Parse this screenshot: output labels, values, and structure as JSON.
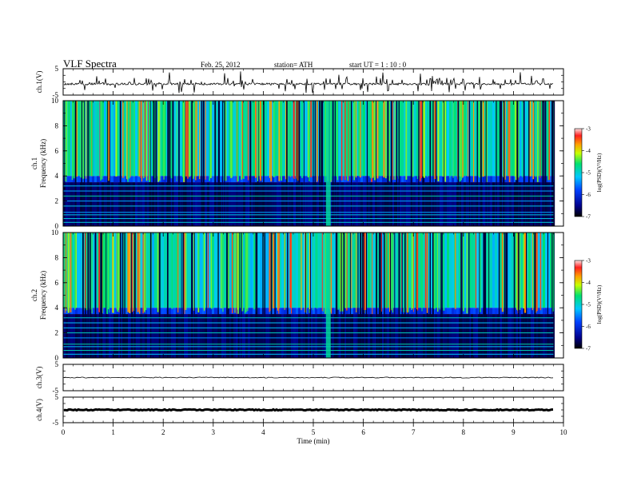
{
  "header": {
    "title": "VLF  Spectra",
    "date": "Feb. 25, 2012",
    "station": "station= ATH",
    "start": "start  UT  =   1  : 10 : 0"
  },
  "chart_data": [
    {
      "type": "line",
      "panel": "ch.1",
      "ylabel": "ch.1(V)",
      "ylim": [
        -5,
        5
      ],
      "yticks": [
        -5,
        5
      ],
      "baseline": -0.8,
      "noise": "impulsive spikes (sferics)"
    },
    {
      "type": "heatmap",
      "panel": "ch.1 spectrogram",
      "ylabel": [
        "ch.1",
        "Frequency  (kHz)"
      ],
      "ylim": [
        0,
        10
      ],
      "yticks": [
        0,
        2,
        4,
        6,
        8,
        10
      ],
      "colorbar": {
        "label": "log(PSD)(V²/Hz)",
        "range": [
          -7,
          -3
        ],
        "ticks": [
          -7,
          -6,
          -5,
          -4,
          -3
        ]
      },
      "broadband_band_khz": [
        4,
        10
      ],
      "quiet_band_khz": [
        0,
        3.5
      ],
      "interference_time_min": 5.3
    },
    {
      "type": "heatmap",
      "panel": "ch.2 spectrogram",
      "ylabel": [
        "ch.2",
        "Frequency  (kHz)"
      ],
      "ylim": [
        0,
        10
      ],
      "yticks": [
        0,
        2,
        4,
        6,
        8,
        10
      ],
      "colorbar": {
        "label": "log(PSD)(V²/Hz)",
        "range": [
          -7,
          -3
        ],
        "ticks": [
          -7,
          -6,
          -5,
          -4,
          -3
        ]
      },
      "broadband_band_khz": [
        4,
        10
      ],
      "quiet_band_khz": [
        0,
        3.5
      ],
      "interference_time_min": 5.3
    },
    {
      "type": "line",
      "panel": "ch.3",
      "ylabel": "ch.3(V)",
      "ylim": [
        -5,
        5
      ],
      "yticks": [
        -5,
        5
      ],
      "baseline": 0
    },
    {
      "type": "line",
      "panel": "ch.4",
      "ylabel": "ch.4(V)",
      "ylim": [
        -5,
        5
      ],
      "yticks": [
        -5,
        5
      ],
      "baseline": 0
    }
  ],
  "xaxis": {
    "label": "Time  (min)",
    "range": [
      0,
      10
    ],
    "data_end": 9.8,
    "ticks": [
      "0",
      "1",
      "2",
      "3",
      "4",
      "5",
      "6",
      "7",
      "8",
      "9",
      "10"
    ]
  },
  "colors": {
    "frame": "#000000",
    "background": "#ffffff"
  }
}
